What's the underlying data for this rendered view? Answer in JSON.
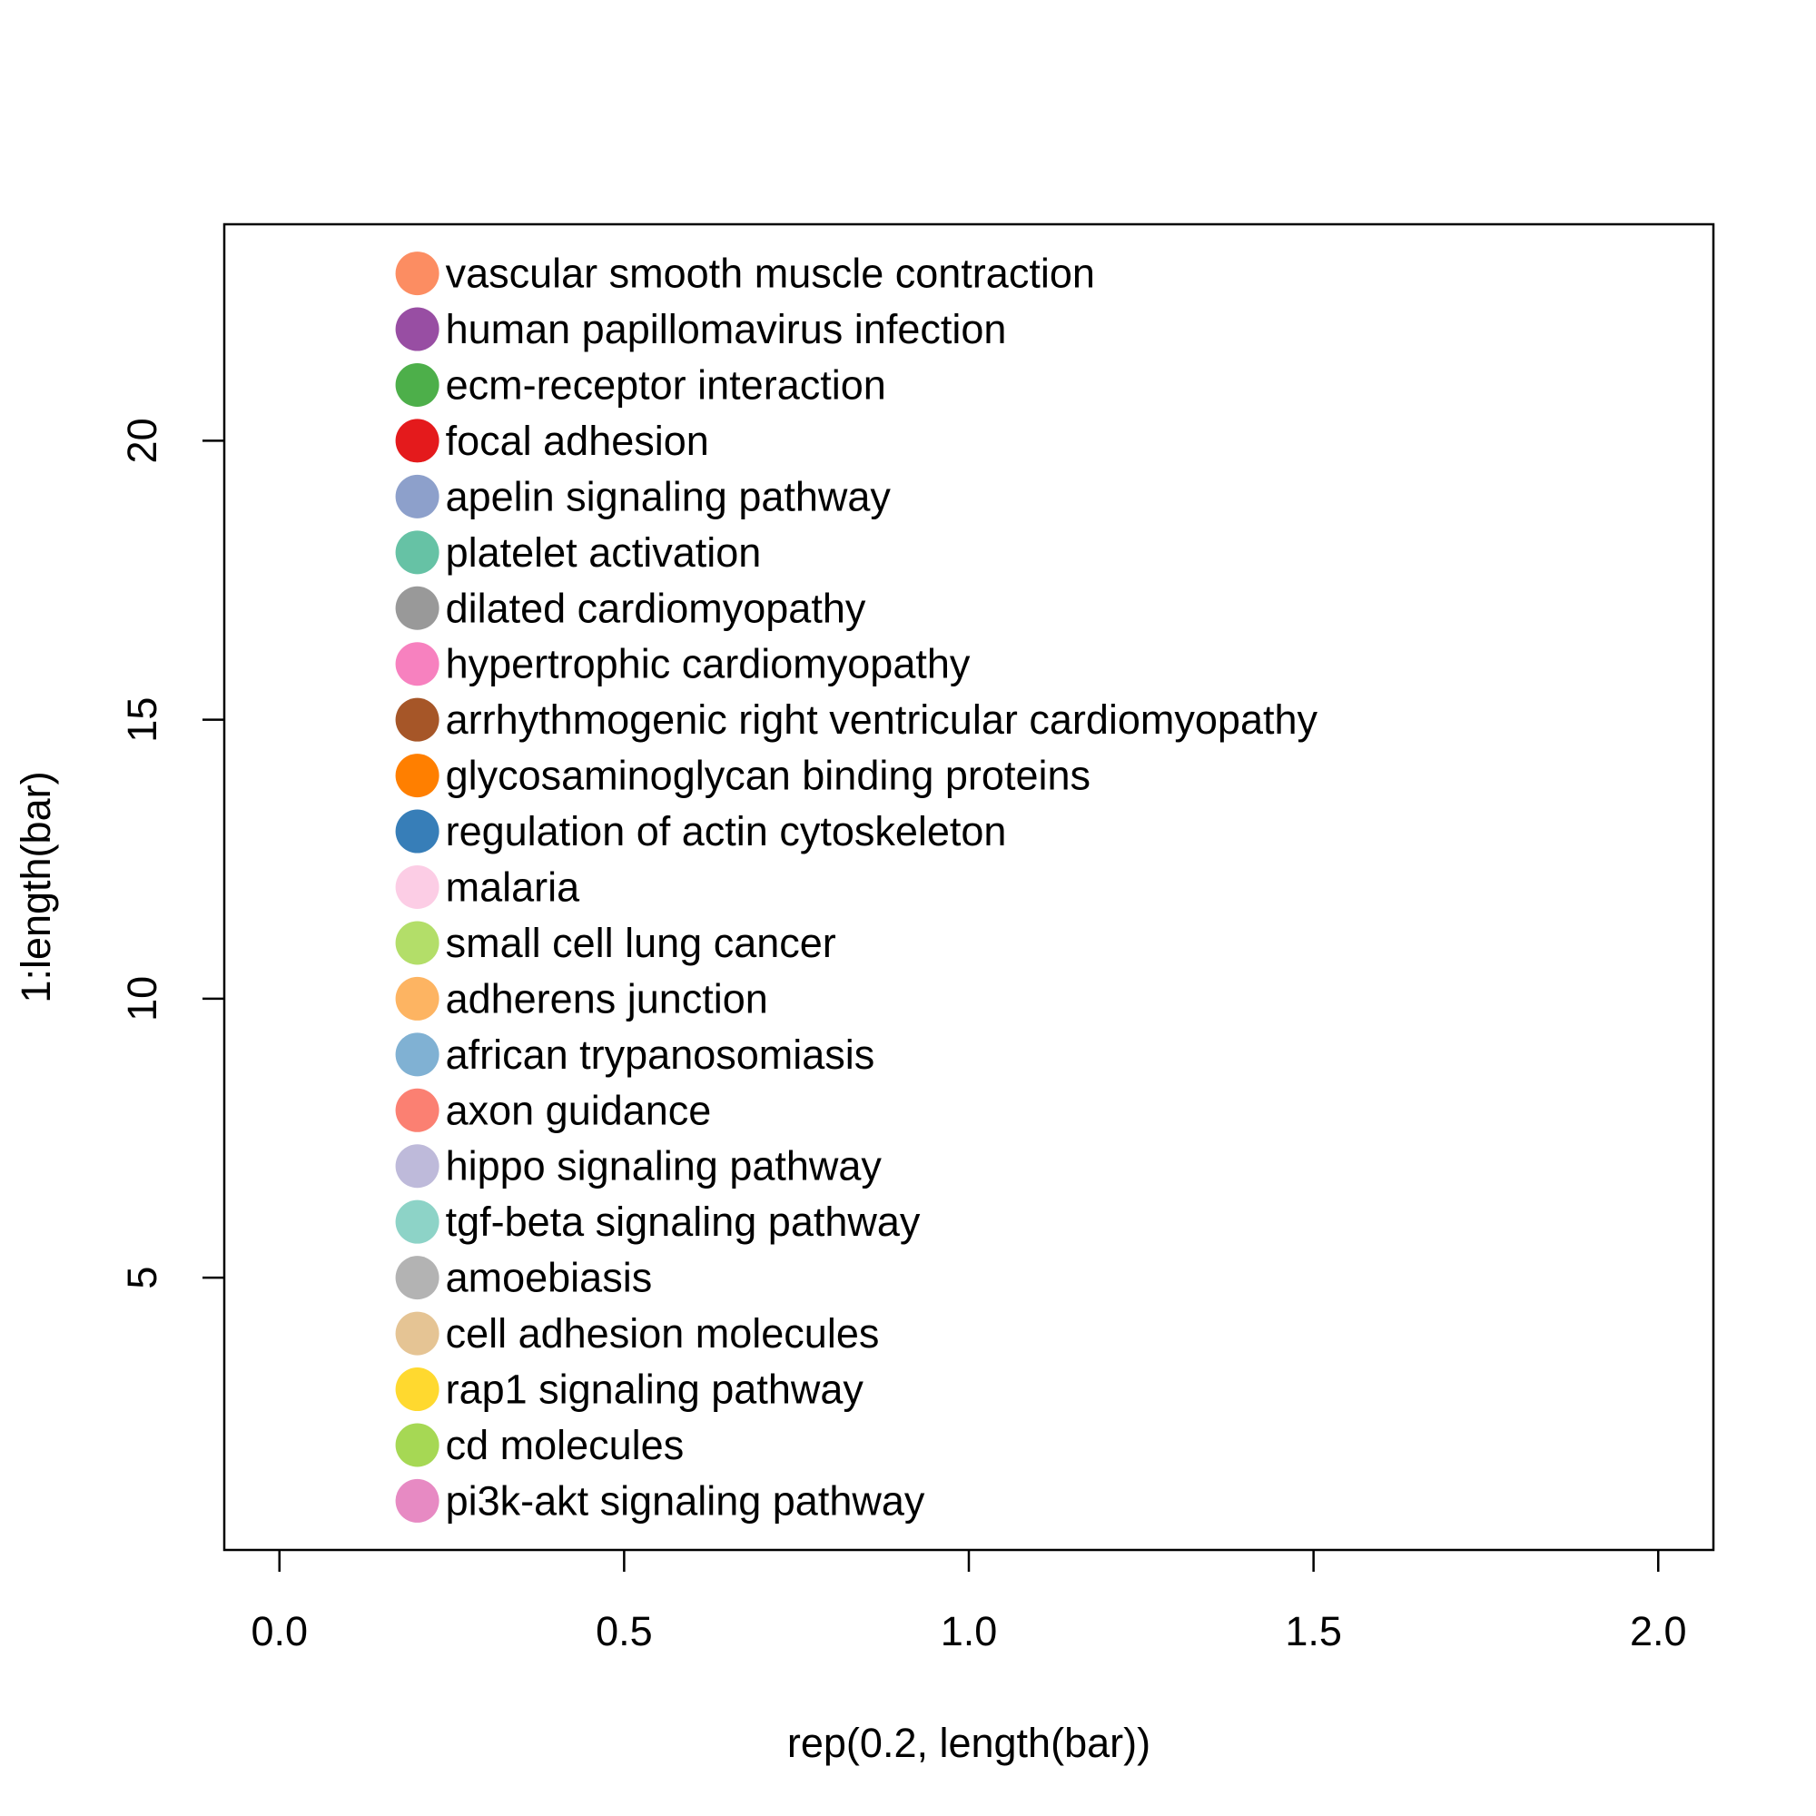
{
  "chart_data": {
    "type": "scatter",
    "xlabel": "rep(0.2, length(bar))",
    "ylabel": "1:length(bar)",
    "xlim": [
      0,
      2
    ],
    "ylim": [
      1,
      23
    ],
    "xticks": [
      "0.0",
      "0.5",
      "1.0",
      "1.5",
      "2.0"
    ],
    "yticks": [
      "5",
      "10",
      "15",
      "20"
    ],
    "grid": false,
    "points": [
      {
        "x": 0.2,
        "y": 1,
        "label": "pi3k-akt signaling pathway",
        "color": "#E78AC3"
      },
      {
        "x": 0.2,
        "y": 2,
        "label": "cd molecules",
        "color": "#A6D854"
      },
      {
        "x": 0.2,
        "y": 3,
        "label": "rap1 signaling pathway",
        "color": "#FFD92F"
      },
      {
        "x": 0.2,
        "y": 4,
        "label": "cell adhesion molecules",
        "color": "#E5C494"
      },
      {
        "x": 0.2,
        "y": 5,
        "label": "amoebiasis",
        "color": "#B3B3B3"
      },
      {
        "x": 0.2,
        "y": 6,
        "label": "tgf-beta signaling pathway",
        "color": "#8DD3C7"
      },
      {
        "x": 0.2,
        "y": 7,
        "label": "hippo signaling pathway",
        "color": "#BEBADA"
      },
      {
        "x": 0.2,
        "y": 8,
        "label": "axon guidance",
        "color": "#FB8072"
      },
      {
        "x": 0.2,
        "y": 9,
        "label": "african trypanosomiasis",
        "color": "#80B1D3"
      },
      {
        "x": 0.2,
        "y": 10,
        "label": "adherens junction",
        "color": "#FDB462"
      },
      {
        "x": 0.2,
        "y": 11,
        "label": "small cell lung cancer",
        "color": "#B3DE69"
      },
      {
        "x": 0.2,
        "y": 12,
        "label": "malaria",
        "color": "#FCCDE5"
      },
      {
        "x": 0.2,
        "y": 13,
        "label": "regulation of actin cytoskeleton",
        "color": "#377EB8"
      },
      {
        "x": 0.2,
        "y": 14,
        "label": "glycosaminoglycan binding proteins",
        "color": "#FF7F00"
      },
      {
        "x": 0.2,
        "y": 15,
        "label": "arrhythmogenic right ventricular cardiomyopathy",
        "color": "#A65628"
      },
      {
        "x": 0.2,
        "y": 16,
        "label": "hypertrophic cardiomyopathy",
        "color": "#F781BF"
      },
      {
        "x": 0.2,
        "y": 17,
        "label": "dilated cardiomyopathy",
        "color": "#999999"
      },
      {
        "x": 0.2,
        "y": 18,
        "label": "platelet activation",
        "color": "#66C2A5"
      },
      {
        "x": 0.2,
        "y": 19,
        "label": "apelin signaling pathway",
        "color": "#8DA0CB"
      },
      {
        "x": 0.2,
        "y": 20,
        "label": "focal adhesion",
        "color": "#E41A1C"
      },
      {
        "x": 0.2,
        "y": 21,
        "label": "ecm-receptor interaction",
        "color": "#4DAF4A"
      },
      {
        "x": 0.2,
        "y": 22,
        "label": "human papillomavirus infection",
        "color": "#984EA3"
      },
      {
        "x": 0.2,
        "y": 23,
        "label": "vascular smooth muscle contraction",
        "color": "#FC8D62"
      }
    ]
  }
}
